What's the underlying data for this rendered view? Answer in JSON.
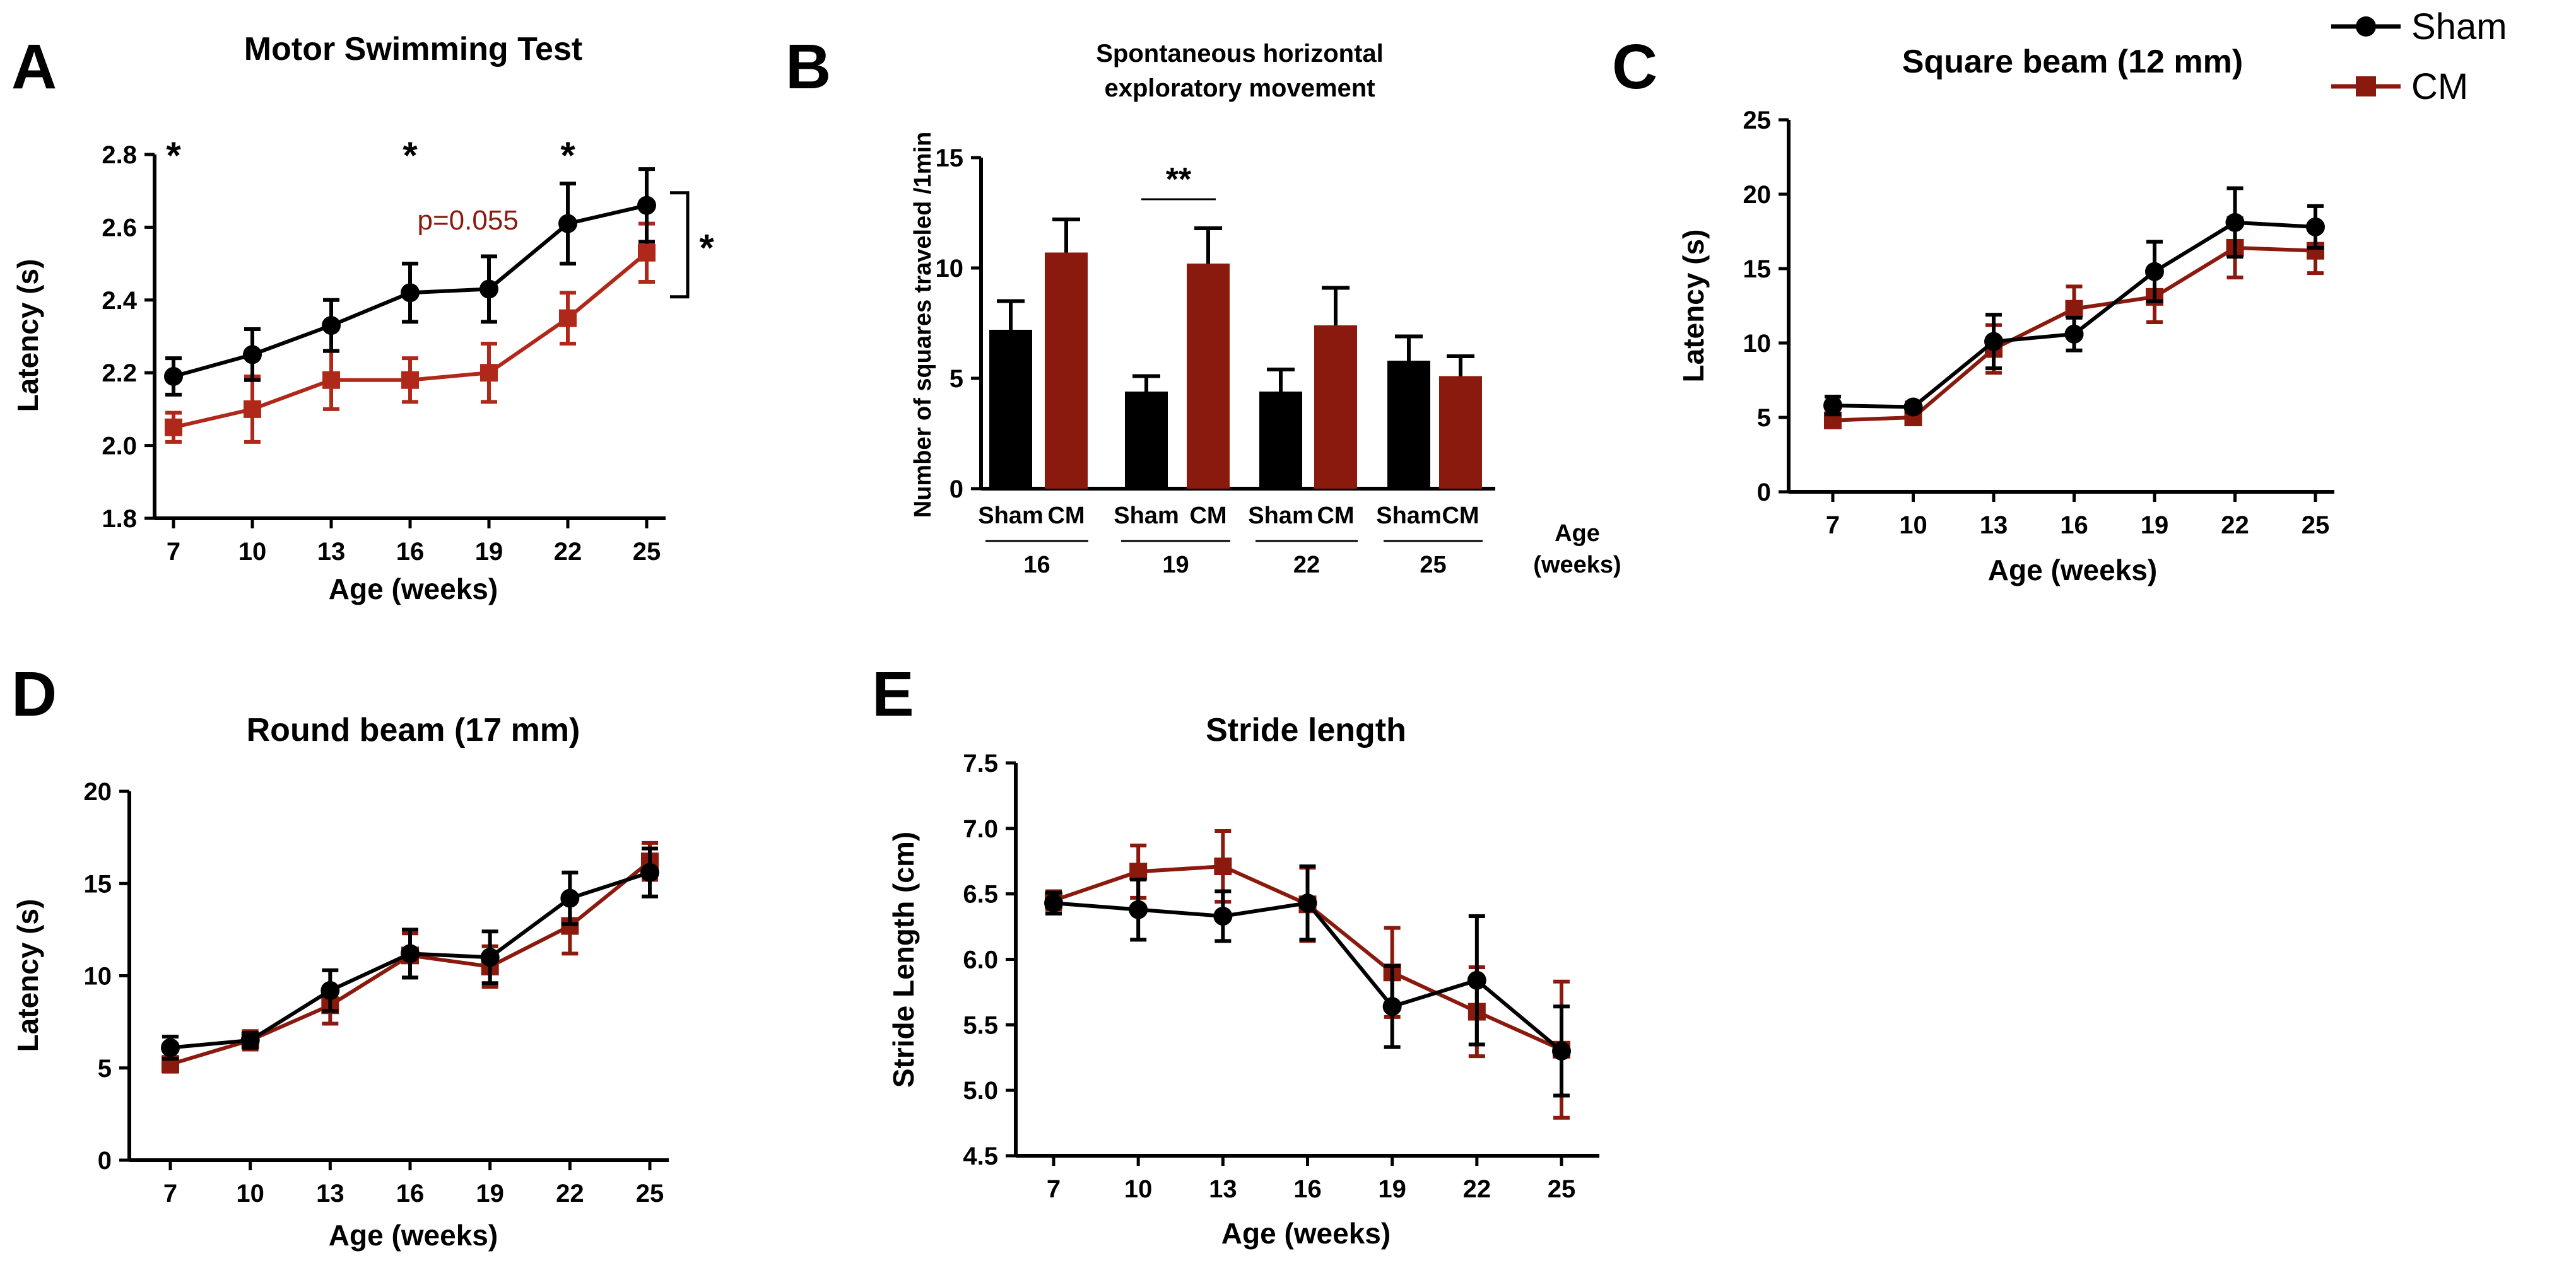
{
  "figure": {
    "legend": [
      {
        "name": "Sham",
        "color": "#000000",
        "marker": "circle"
      },
      {
        "name": "CM",
        "color": "#8B1A0E",
        "marker": "square"
      }
    ]
  },
  "colors": {
    "sham": "#000000",
    "cm": "#8B1A0E",
    "cm_line": "#B0281A",
    "sham_bar": "#000000",
    "cm_bar": "#8B1A0E"
  },
  "chart_data": [
    {
      "id": "A",
      "letter": "A",
      "type": "line",
      "title": "Motor Swimming Test",
      "xlabel": "Age (weeks)",
      "ylabel": "Latency (s)",
      "x": [
        7,
        10,
        13,
        16,
        19,
        22,
        25
      ],
      "x_tick_labels": [
        "7",
        "10",
        "13",
        "16",
        "19",
        "22",
        "25"
      ],
      "ylim": [
        1.8,
        2.8
      ],
      "y_ticks": [
        1.8,
        2.0,
        2.2,
        2.4,
        2.6,
        2.8
      ],
      "y_tick_labels": [
        "1.8",
        "2.0",
        "2.2",
        "2.4",
        "2.6",
        "2.8"
      ],
      "series": [
        {
          "name": "Sham",
          "values": [
            2.19,
            2.25,
            2.33,
            2.42,
            2.43,
            2.61,
            2.66
          ],
          "errors": [
            0.05,
            0.07,
            0.07,
            0.08,
            0.09,
            0.11,
            0.1
          ]
        },
        {
          "name": "CM",
          "values": [
            2.05,
            2.1,
            2.18,
            2.18,
            2.2,
            2.35,
            2.53
          ],
          "errors": [
            0.04,
            0.09,
            0.08,
            0.06,
            0.08,
            0.07,
            0.08
          ]
        }
      ],
      "annotations": [
        {
          "text": "*",
          "x": 7,
          "y": 2.8
        },
        {
          "text": "*",
          "x": 16,
          "y": 2.8
        },
        {
          "text": "*",
          "x": 22,
          "y": 2.8
        },
        {
          "text": "p=0.055",
          "x": 18.2,
          "y": 2.62,
          "color": "cm"
        }
      ],
      "bracket": {
        "from": 2.66,
        "to": 2.53,
        "text": "*"
      }
    },
    {
      "id": "B",
      "letter": "B",
      "type": "bar",
      "title": "Spontaneous horizontal",
      "title2": "exploratory movement",
      "ylabel": "Number of squares traveled /1min",
      "categories": [
        "Sham",
        "CM",
        "Sham",
        "CM",
        "Sham",
        "CM",
        "Sham",
        "CM"
      ],
      "values": [
        7.2,
        10.7,
        4.4,
        10.2,
        4.4,
        7.4,
        5.8,
        5.1
      ],
      "errors": [
        1.3,
        1.5,
        0.7,
        1.6,
        1.0,
        1.7,
        1.1,
        0.9
      ],
      "groups": [
        "16",
        "19",
        "22",
        "25"
      ],
      "group_axis_label": "Age",
      "group_axis_label2": "(weeks)",
      "ylim": [
        0,
        15
      ],
      "y_ticks": [
        0,
        5,
        10,
        15
      ],
      "y_tick_labels": [
        "0",
        "5",
        "10",
        "15"
      ],
      "annotations": [
        {
          "text": "**",
          "between": [
            2,
            3
          ]
        }
      ]
    },
    {
      "id": "C",
      "letter": "C",
      "type": "line",
      "title": "Square beam (12 mm)",
      "xlabel": "Age (weeks)",
      "ylabel": "Latency (s)",
      "x": [
        7,
        10,
        13,
        16,
        19,
        22,
        25
      ],
      "x_tick_labels": [
        "7",
        "10",
        "13",
        "16",
        "19",
        "22",
        "25"
      ],
      "ylim": [
        0,
        25
      ],
      "y_ticks": [
        0,
        5,
        10,
        15,
        20,
        25
      ],
      "y_tick_labels": [
        "0",
        "5",
        "10",
        "15",
        "20",
        "25"
      ],
      "series": [
        {
          "name": "Sham",
          "values": [
            5.8,
            5.7,
            10.1,
            10.6,
            14.8,
            18.1,
            17.8
          ],
          "errors": [
            0.6,
            0.3,
            1.8,
            1.1,
            2.0,
            2.3,
            1.4
          ]
        },
        {
          "name": "CM",
          "values": [
            4.8,
            5.0,
            9.6,
            12.3,
            13.1,
            16.4,
            16.2
          ],
          "errors": [
            0.4,
            0.4,
            1.6,
            1.5,
            1.7,
            2.0,
            1.5
          ]
        }
      ]
    },
    {
      "id": "D",
      "letter": "D",
      "type": "line",
      "title": "Round beam (17 mm)",
      "xlabel": "Age (weeks)",
      "ylabel": "Latency (s)",
      "x": [
        7,
        10,
        13,
        16,
        19,
        22,
        25
      ],
      "x_tick_labels": [
        "7",
        "10",
        "13",
        "16",
        "19",
        "22",
        "25"
      ],
      "ylim": [
        0,
        20
      ],
      "y_ticks": [
        0,
        5,
        10,
        15,
        20
      ],
      "y_tick_labels": [
        "0",
        "5",
        "10",
        "15",
        "20"
      ],
      "series": [
        {
          "name": "Sham",
          "values": [
            6.1,
            6.5,
            9.2,
            11.2,
            11.0,
            14.2,
            15.6
          ],
          "errors": [
            0.6,
            0.4,
            1.1,
            1.3,
            1.4,
            1.4,
            1.3
          ]
        },
        {
          "name": "CM",
          "values": [
            5.2,
            6.5,
            8.4,
            11.1,
            10.5,
            12.7,
            16.2
          ],
          "errors": [
            0.4,
            0.5,
            1.0,
            1.2,
            1.1,
            1.5,
            1.0
          ]
        }
      ]
    },
    {
      "id": "E",
      "letter": "E",
      "type": "line",
      "title": "Stride length",
      "xlabel": "Age (weeks)",
      "ylabel": "Stride Length (cm)",
      "x": [
        7,
        10,
        13,
        16,
        19,
        22,
        25
      ],
      "x_tick_labels": [
        "7",
        "10",
        "13",
        "16",
        "19",
        "22",
        "25"
      ],
      "ylim": [
        4.5,
        7.5
      ],
      "y_ticks": [
        4.5,
        5.0,
        5.5,
        6.0,
        6.5,
        7.0,
        7.5
      ],
      "y_tick_labels": [
        "4.5",
        "5.0",
        "5.5",
        "6.0",
        "6.5",
        "7.0",
        "7.5"
      ],
      "series": [
        {
          "name": "Sham",
          "values": [
            6.43,
            6.38,
            6.33,
            6.43,
            5.64,
            5.84,
            5.3
          ],
          "errors": [
            0.08,
            0.23,
            0.19,
            0.28,
            0.31,
            0.49,
            0.34
          ]
        },
        {
          "name": "CM",
          "values": [
            6.45,
            6.67,
            6.71,
            6.42,
            5.9,
            5.6,
            5.31
          ],
          "errors": [
            0.07,
            0.2,
            0.27,
            0.28,
            0.34,
            0.34,
            0.52
          ]
        }
      ]
    }
  ]
}
